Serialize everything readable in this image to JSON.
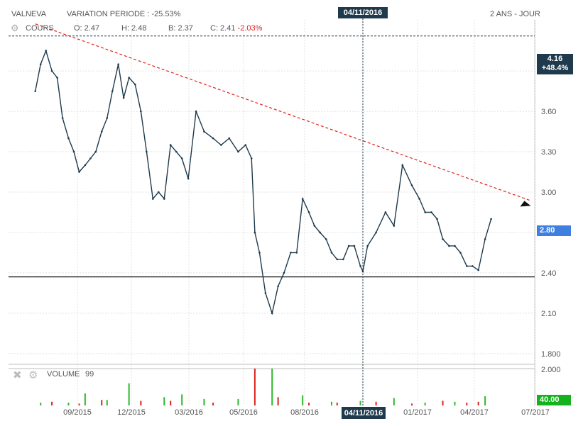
{
  "header": {
    "ticker": "VALNEVA",
    "variation": "VARIATION PERIODE : -25.53%",
    "period": "2 ANS - JOUR",
    "cursor_date": "04/11/2016"
  },
  "price_panel": {
    "label": "COURS",
    "open": "O: 2.47",
    "high": "H: 2.48",
    "low": "B: 2.37",
    "close_prefix": "C: 2.41",
    "close_change": "-2.03%",
    "ref_tag_value": "4.16",
    "ref_tag_change": "+48.4%",
    "last_tag": "2.80"
  },
  "volume_panel": {
    "label": "VOLUME",
    "value": "99",
    "last_tag": "40.00"
  },
  "icons": [
    "gear-icon",
    "close-icon",
    "gear-icon"
  ],
  "colors": {
    "price_line": "#1e3a4c",
    "trend_line": "#e0201b",
    "volume_up": "#2db82d",
    "volume_down": "#e0201b",
    "tag_dark": "#1e3a4c",
    "tag_blue": "#3f7fe0",
    "tag_green": "#14b21c"
  },
  "chart_data": [
    {
      "type": "line",
      "title": "",
      "x_ticks": [
        "09/2015",
        "12/2015",
        "03/2016",
        "05/2016",
        "08/2016",
        "04/11/2016",
        "01/2017",
        "04/2017",
        "07/2017"
      ],
      "y_ticks": [
        1.8,
        2.1,
        2.4,
        2.7,
        3.0,
        3.3,
        3.6,
        3.9
      ],
      "y_tick_labels": [
        "1.800",
        "2.10",
        "2.40",
        "2.70",
        "3.00",
        "3.30",
        "3.60",
        "3.90"
      ],
      "ylim": [
        1.72,
        4.28
      ],
      "grid": true,
      "series": [
        {
          "x": [
            "2015-06-22",
            "2015-07-01",
            "2015-07-10",
            "2015-07-20",
            "2015-07-29",
            "2015-08-07",
            "2015-08-17",
            "2015-08-26",
            "2015-09-04",
            "2015-09-14",
            "2015-09-23",
            "2015-10-02",
            "2015-10-12",
            "2015-10-21",
            "2015-10-30",
            "2015-11-09",
            "2015-11-18",
            "2015-11-27",
            "2015-12-07",
            "2015-12-16",
            "2015-12-25",
            "2016-01-04",
            "2016-01-13",
            "2016-01-22",
            "2016-02-01",
            "2016-02-10",
            "2016-02-19",
            "2016-02-29",
            "2016-03-09",
            "2016-03-18",
            "2016-03-28",
            "2016-04-06",
            "2016-04-15",
            "2016-04-25",
            "2016-05-04",
            "2016-05-13",
            "2016-05-18",
            "2016-05-25",
            "2016-06-03",
            "2016-06-13",
            "2016-06-22",
            "2016-07-01",
            "2016-07-11",
            "2016-07-20",
            "2016-07-29",
            "2016-08-08",
            "2016-08-17",
            "2016-08-26",
            "2016-09-05",
            "2016-09-14",
            "2016-09-23",
            "2016-10-03",
            "2016-10-12",
            "2016-10-21",
            "2016-10-31",
            "2016-11-04",
            "2016-11-09",
            "2016-11-18",
            "2016-11-28",
            "2016-12-07",
            "2016-12-16",
            "2016-12-26",
            "2017-01-04",
            "2017-01-13",
            "2017-01-23",
            "2017-02-01",
            "2017-02-10",
            "2017-02-20",
            "2017-03-01",
            "2017-03-10",
            "2017-03-20",
            "2017-03-29",
            "2017-04-07",
            "2017-04-17",
            "2017-04-26"
          ],
          "y": [
            3.75,
            3.95,
            4.05,
            3.9,
            3.85,
            3.55,
            3.4,
            3.3,
            3.15,
            3.2,
            3.25,
            3.3,
            3.45,
            3.55,
            3.75,
            3.95,
            3.7,
            3.85,
            3.8,
            3.6,
            3.3,
            2.95,
            3.0,
            2.95,
            3.35,
            3.3,
            3.25,
            3.1,
            3.6,
            3.45,
            3.4,
            3.35,
            3.4,
            3.3,
            3.35,
            3.25,
            2.7,
            2.55,
            2.25,
            2.1,
            2.3,
            2.4,
            2.55,
            2.55,
            2.95,
            2.85,
            2.75,
            2.7,
            2.65,
            2.55,
            2.5,
            2.5,
            2.6,
            2.6,
            2.45,
            2.41,
            2.6,
            2.7,
            2.85,
            2.75,
            3.2,
            3.05,
            2.95,
            2.85,
            2.85,
            2.8,
            2.65,
            2.6,
            2.6,
            2.55,
            2.45,
            2.45,
            2.42,
            2.65,
            2.8
          ]
        }
      ],
      "annotations": [
        {
          "kind": "trend_line",
          "from": [
            "2015-06-22",
            4.25
          ],
          "to": [
            "2017-06-22",
            2.94
          ]
        },
        {
          "kind": "horizontal_line",
          "y": 4.16
        },
        {
          "kind": "horizontal_line",
          "y": 2.37
        }
      ]
    },
    {
      "type": "bar",
      "title": "",
      "y_ticks": [
        2000
      ],
      "y_tick_labels": [
        "2.000"
      ],
      "ylim": [
        0,
        2000
      ],
      "up_days": [
        "2015-07-01",
        "2015-08-17",
        "2015-09-14",
        "2015-10-21",
        "2015-11-27",
        "2016-01-22",
        "2016-02-19",
        "2016-03-18",
        "2016-04-25",
        "2016-06-13",
        "2016-07-29",
        "2016-09-14",
        "2016-10-31",
        "2016-12-07",
        "2017-01-13",
        "2017-03-01",
        "2017-04-17"
      ],
      "up_values": [
        150,
        150,
        650,
        300,
        1200,
        450,
        600,
        350,
        350,
        2000,
        550,
        200,
        250,
        400,
        150,
        200,
        500
      ],
      "down_days": [
        "2015-07-20",
        "2015-09-04",
        "2015-10-12",
        "2015-12-16",
        "2016-02-01",
        "2016-03-28",
        "2016-05-18",
        "2016-06-22",
        "2016-08-08",
        "2016-09-23",
        "2016-11-18",
        "2016-12-26",
        "2017-02-10",
        "2017-03-20",
        "2017-04-07"
      ],
      "down_values": [
        200,
        100,
        300,
        250,
        250,
        150,
        2000,
        450,
        150,
        150,
        200,
        100,
        250,
        150,
        200
      ]
    }
  ]
}
